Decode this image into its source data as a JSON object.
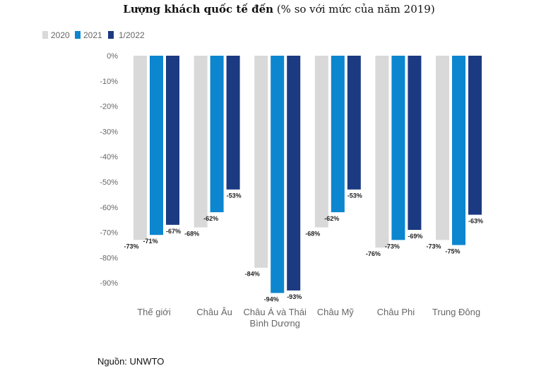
{
  "title_bold": "Lượng khách quốc tế đến",
  "title_rest": " (% so với mức của năm 2019)",
  "source": "Nguồn: UNWTO",
  "colors": {
    "2020": "#d9d9d9",
    "2021": "#0c86cf",
    "1/2022": "#1b3a82",
    "axis_text": "#666666",
    "grid": "#e6e6e6"
  },
  "chart_data": {
    "type": "bar",
    "title": "Lượng khách quốc tế đến (% so với mức của năm 2019)",
    "categories": [
      "Thế giới",
      "Châu Âu",
      "Châu Á và Thái Bình Dương",
      "Châu Mỹ",
      "Châu Phi",
      "Trung Đông"
    ],
    "category_lines": [
      [
        "Thế giới"
      ],
      [
        "Châu Âu"
      ],
      [
        "Châu Á và Thái",
        "Bình Dương"
      ],
      [
        "Châu Mỹ"
      ],
      [
        "Châu Phi"
      ],
      [
        "Trung Đông"
      ]
    ],
    "series": [
      {
        "name": "2020",
        "values": [
          -73,
          -68,
          -84,
          -68,
          -76,
          -73
        ]
      },
      {
        "name": "2021",
        "values": [
          -71,
          -62,
          -94,
          -62,
          -73,
          -75
        ]
      },
      {
        "name": "1/2022",
        "values": [
          -67,
          -53,
          -93,
          -53,
          -69,
          -63
        ]
      }
    ],
    "ylim": [
      -95,
      0
    ],
    "yticks": [
      0,
      -10,
      -20,
      -30,
      -40,
      -50,
      -60,
      -70,
      -80,
      -90
    ],
    "ytick_labels": [
      "0%",
      "-10%",
      "-20%",
      "-30%",
      "-40%",
      "-50%",
      "-60%",
      "-70%",
      "-80%",
      "-90%"
    ],
    "data_labels": [
      [
        "-73%",
        "-68%",
        "-84%",
        "-68%",
        "-76%",
        "-73%"
      ],
      [
        "-71%",
        "-62%",
        "-94%",
        "-62%",
        "-73%",
        "-75%"
      ],
      [
        "-67%",
        "-53%",
        "-93%",
        "-53%",
        "-69%",
        "-63%"
      ]
    ],
    "legend_position": "top-left",
    "grid": false,
    "xlabel": "",
    "ylabel": ""
  }
}
